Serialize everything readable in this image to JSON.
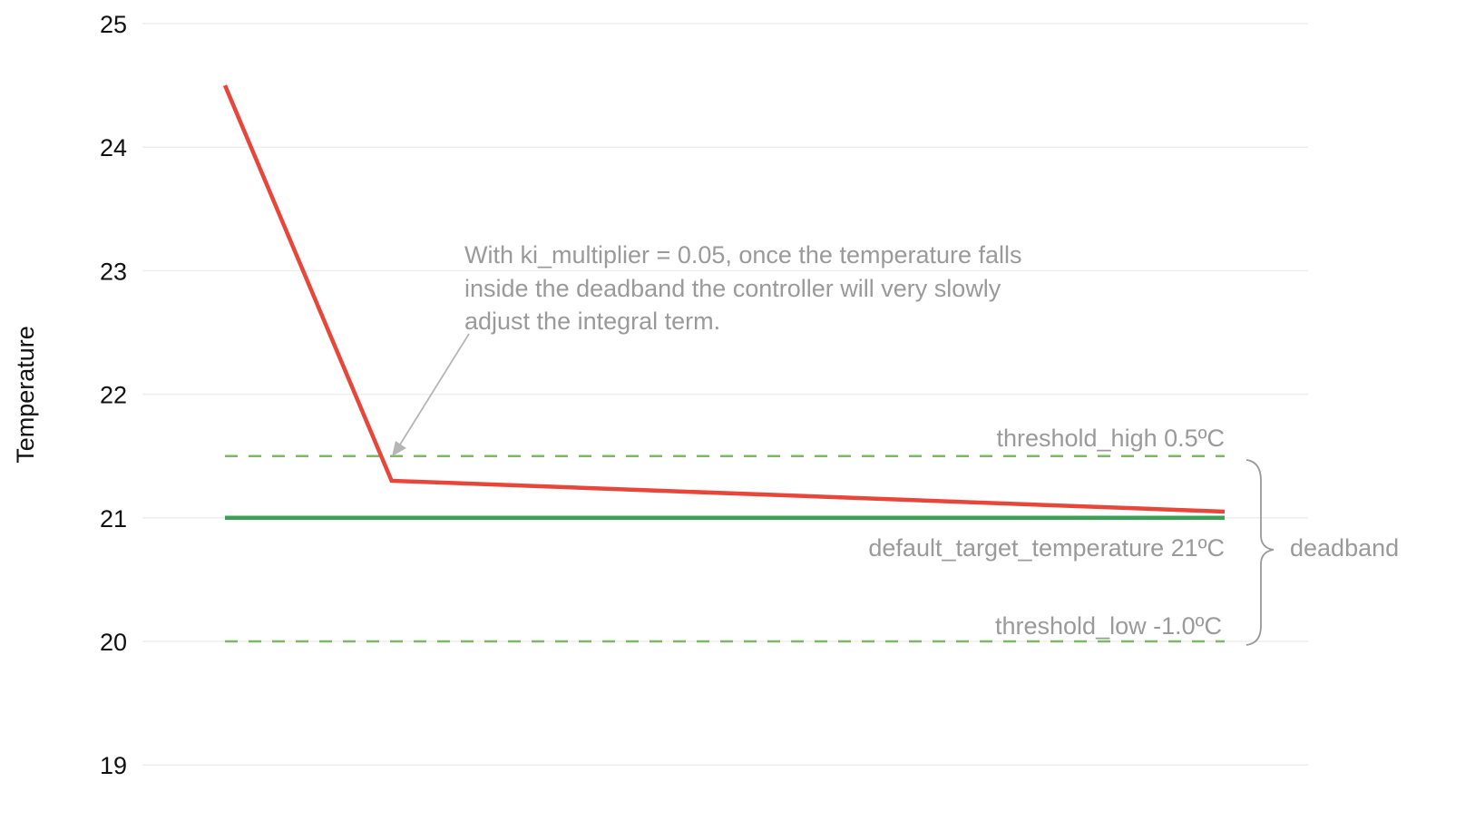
{
  "chart_data": {
    "type": "line",
    "title": "",
    "xlabel": "",
    "ylabel": "Temperature",
    "ylim": [
      19,
      25
    ],
    "yticks": [
      "25",
      "24",
      "23",
      "22",
      "21",
      "20",
      "19"
    ],
    "ytick_values": [
      25,
      24,
      23,
      22,
      21,
      20,
      19
    ],
    "grid": true,
    "series": [
      {
        "color": "#e8463a",
        "x": [
          0,
          1,
          6
        ],
        "values": [
          24.5,
          21.3,
          21.05
        ],
        "style": "solid"
      },
      {
        "color": "#3aa157",
        "x": [
          0,
          6
        ],
        "values": [
          21,
          21
        ],
        "style": "solid"
      }
    ],
    "reference_lines": [
      {
        "value": 21.5,
        "color": "#7cb866",
        "style": "dashed",
        "label": "threshold_high  0.5ºC"
      },
      {
        "value": 20,
        "color": "#7cb866",
        "style": "dashed",
        "label": "threshold_low  -1.0ºC"
      }
    ],
    "target_label": "default_target_temperature  21ºC",
    "brace_label": "deadband",
    "annotation": {
      "lines": [
        "With ki_multiplier = 0.05, once the temperature falls",
        "inside the deadband the controller will very slowly",
        "adjust the integral term."
      ],
      "arrow_color": "#b5b5b5"
    }
  }
}
